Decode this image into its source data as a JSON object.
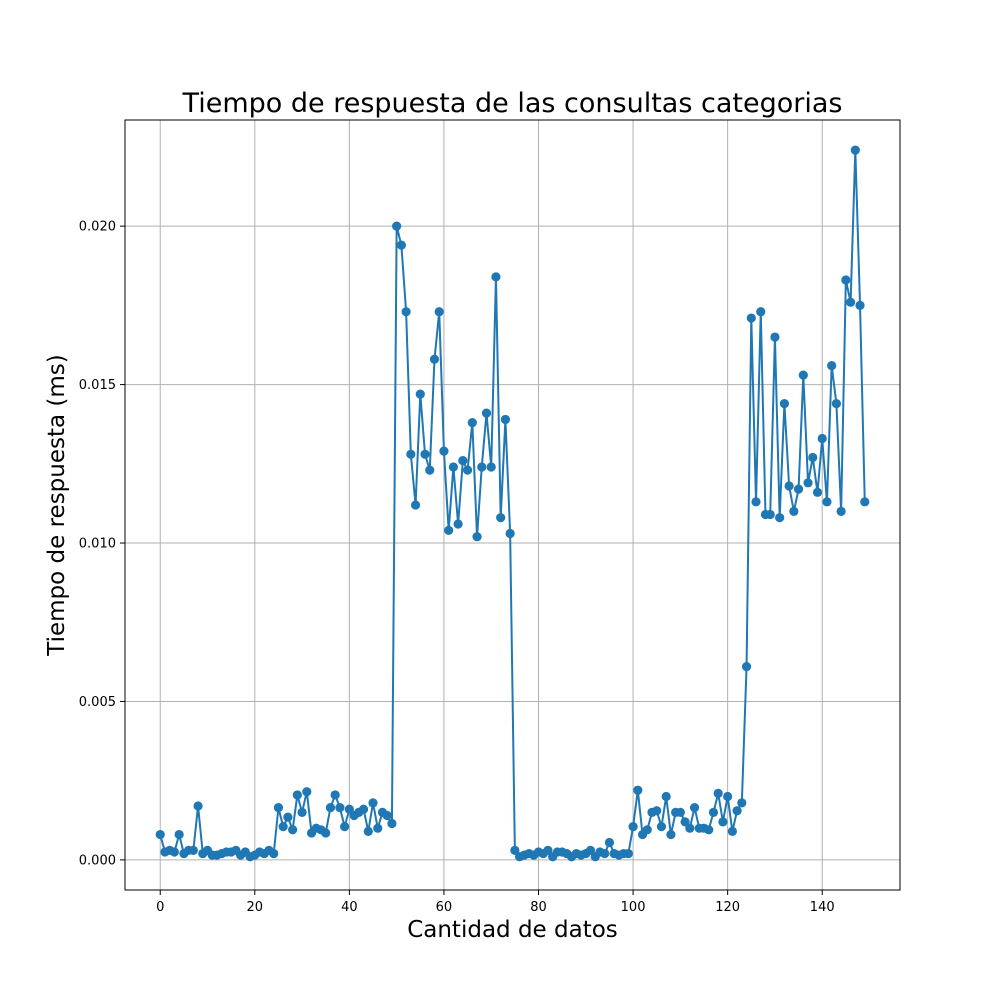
{
  "chart_data": {
    "type": "line",
    "title": "Tiempo de respuesta de las consultas categorias",
    "xlabel": "Cantidad de datos",
    "ylabel": "Tiempo de respuesta (ms)",
    "xlim": [
      -7.45,
      156.45
    ],
    "ylim": [
      -0.00095,
      0.02335
    ],
    "xticks": [
      0,
      20,
      40,
      60,
      80,
      100,
      120,
      140
    ],
    "yticks": [
      0.0,
      0.005,
      0.01,
      0.015,
      0.02
    ],
    "ytick_labels": [
      "0.000",
      "0.005",
      "0.010",
      "0.015",
      "0.020"
    ],
    "grid": true,
    "markers": true,
    "color": "#1f77b4",
    "series": [
      {
        "x": [
          0,
          1,
          2,
          3,
          4,
          5,
          6,
          7,
          8,
          9,
          10,
          11,
          12,
          13,
          14,
          15,
          16,
          17,
          18,
          19,
          20,
          21,
          22,
          23,
          24,
          25,
          26,
          27,
          28,
          29,
          30,
          31,
          32,
          33,
          34,
          35,
          36,
          37,
          38,
          39,
          40,
          41,
          42,
          43,
          44,
          45,
          46,
          47,
          48,
          49,
          50,
          51,
          52,
          53,
          54,
          55,
          56,
          57,
          58,
          59,
          60,
          61,
          62,
          63,
          64,
          65,
          66,
          67,
          68,
          69,
          70,
          71,
          72,
          73,
          74,
          75,
          76,
          77,
          78,
          79,
          80,
          81,
          82,
          83,
          84,
          85,
          86,
          87,
          88,
          89,
          90,
          91,
          92,
          93,
          94,
          95,
          96,
          97,
          98,
          99,
          100,
          101,
          102,
          103,
          104,
          105,
          106,
          107,
          108,
          109,
          110,
          111,
          112,
          113,
          114,
          115,
          116,
          117,
          118,
          119,
          120,
          121,
          122,
          123,
          124,
          125,
          126,
          127,
          128,
          129,
          130,
          131,
          132,
          133,
          134,
          135,
          136,
          137,
          138,
          139,
          140,
          141,
          142,
          143,
          144,
          145,
          146,
          147,
          148,
          149
        ],
        "y": [
          0.0008,
          0.00025,
          0.0003,
          0.00025,
          0.0008,
          0.0002,
          0.0003,
          0.0003,
          0.0017,
          0.0002,
          0.0003,
          0.00015,
          0.00015,
          0.0002,
          0.00025,
          0.00025,
          0.0003,
          0.00015,
          0.00025,
          0.0001,
          0.00015,
          0.00025,
          0.0002,
          0.0003,
          0.0002,
          0.00165,
          0.00105,
          0.00135,
          0.00095,
          0.00205,
          0.0015,
          0.00215,
          0.00085,
          0.001,
          0.00095,
          0.00085,
          0.00165,
          0.00205,
          0.00165,
          0.00105,
          0.0016,
          0.0014,
          0.0015,
          0.0016,
          0.0009,
          0.0018,
          0.001,
          0.0015,
          0.0014,
          0.00115,
          0.02,
          0.0194,
          0.0173,
          0.0128,
          0.0112,
          0.0147,
          0.0128,
          0.0123,
          0.0158,
          0.0173,
          0.0129,
          0.0104,
          0.0124,
          0.0106,
          0.0126,
          0.0123,
          0.0138,
          0.0102,
          0.0124,
          0.0141,
          0.0124,
          0.0184,
          0.0108,
          0.0139,
          0.0103,
          0.0003,
          0.0001,
          0.00015,
          0.0002,
          0.00015,
          0.00025,
          0.0002,
          0.0003,
          0.0001,
          0.00025,
          0.00025,
          0.0002,
          0.0001,
          0.0002,
          0.00015,
          0.0002,
          0.0003,
          0.0001,
          0.00025,
          0.0002,
          0.00055,
          0.0002,
          0.00015,
          0.0002,
          0.0002,
          0.00105,
          0.0022,
          0.0008,
          0.00095,
          0.0015,
          0.00155,
          0.00105,
          0.002,
          0.0008,
          0.0015,
          0.0015,
          0.0012,
          0.001,
          0.00165,
          0.001,
          0.001,
          0.00095,
          0.0015,
          0.0021,
          0.0012,
          0.002,
          0.0009,
          0.00155,
          0.0018,
          0.0061,
          0.0171,
          0.0113,
          0.0173,
          0.0109,
          0.0109,
          0.0165,
          0.0108,
          0.0144,
          0.0118,
          0.011,
          0.0117,
          0.0153,
          0.0119,
          0.0127,
          0.0116,
          0.0133,
          0.0113,
          0.0156,
          0.0144,
          0.011,
          0.0183,
          0.0176,
          0.0224,
          0.0175,
          0.0113
        ]
      }
    ]
  }
}
